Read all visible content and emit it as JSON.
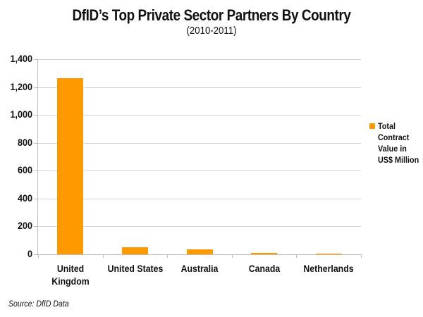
{
  "chart_data": {
    "type": "bar",
    "title": "DfID’s Top Private Sector Partners By Country",
    "subtitle": "(2010-2011)",
    "categories": [
      "United Kingdom",
      "United States",
      "Australia",
      "Canada",
      "Netherlands"
    ],
    "category_lines": [
      [
        "United",
        "Kingdom"
      ],
      [
        "United States"
      ],
      [
        "Australia"
      ],
      [
        "Canada"
      ],
      [
        "Netherlands"
      ]
    ],
    "series": [
      {
        "name": "Total Contract Value in US$ Million",
        "color": "#ff9900",
        "values": [
          1262,
          50,
          37,
          10,
          6
        ]
      }
    ],
    "xlabel": "",
    "ylabel": "",
    "ylim": [
      0,
      1400
    ],
    "yticks": [
      0,
      200,
      400,
      600,
      800,
      1000,
      1200,
      1400
    ],
    "ytick_labels": [
      "0",
      "200",
      "400",
      "600",
      "800",
      "1,000",
      "1,200",
      "1,400"
    ],
    "grid": true,
    "legend_position": "right",
    "source": "Source: DfID Data"
  },
  "legend": {
    "label_lines": [
      "Total",
      "Contract",
      "Value in",
      "US$ Million"
    ]
  }
}
